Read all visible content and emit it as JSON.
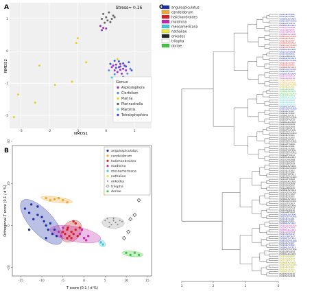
{
  "panel_labels": {
    "a": "A",
    "b": "B",
    "c": "C"
  },
  "colors": {
    "angulospiculatus": "#1f2fa8",
    "candelabrum": "#f0a830",
    "halichondroides": "#d42020",
    "madinina": "#c02ab0",
    "mesoamericana": "#47c8d8",
    "nathaliae": "#e8e840",
    "onkodes": "#222222",
    "trilopha": "#ffffff",
    "doriae": "#40c840",
    "genus_Asploslophora": "#9b30c8",
    "genus_Clorfolium": "#6a8ae0",
    "genus_Plarina": "#e6d020",
    "genus_Plarinastrella": "#666666",
    "genus_Plarolitis": "#4ec8d6",
    "genus_Tetralophophora": "#3b5ad8"
  },
  "chart_data": [
    {
      "type": "scatter",
      "panel": "A",
      "title": "",
      "annotation": "Stress= 0.16",
      "xlabel": "NMDS1",
      "ylabel": "NMDS2",
      "xlim": [
        -3.4,
        1.6
      ],
      "ylim": [
        -2.4,
        1.5
      ],
      "xticks": [
        "-3",
        "-2",
        "-1",
        "0",
        "1"
      ],
      "yticks": [
        "1",
        "0",
        "-1",
        "-2"
      ],
      "legend_title": "Genus",
      "legend_position": "bottom-right",
      "series": [
        {
          "name": "Asploslophora",
          "points": [
            [
              0.25,
              -0.45
            ],
            [
              0.35,
              -0.42
            ],
            [
              0.45,
              -0.5
            ],
            [
              0.5,
              -0.4
            ],
            [
              0.6,
              -0.55
            ],
            [
              0.3,
              -0.6
            ],
            [
              0.4,
              -0.65
            ],
            [
              0.55,
              -0.7
            ],
            [
              0.2,
              -0.5
            ],
            [
              0.65,
              -0.45
            ],
            [
              0.7,
              -0.6
            ],
            [
              0.5,
              -0.58
            ],
            [
              -0.2,
              0.78
            ],
            [
              -0.1,
              0.72
            ],
            [
              -0.15,
              0.65
            ],
            [
              0.0,
              0.7
            ]
          ]
        },
        {
          "name": "Clorfolium",
          "points": [
            [
              0.1,
              -0.6
            ],
            [
              0.3,
              -0.72
            ],
            [
              0.6,
              -0.8
            ],
            [
              0.75,
              -0.7
            ],
            [
              0.85,
              -0.55
            ]
          ]
        },
        {
          "name": "Plarina",
          "points": [
            [
              -1.0,
              0.4
            ],
            [
              -1.05,
              0.25
            ],
            [
              -0.7,
              -0.35
            ],
            [
              -1.2,
              -0.95
            ],
            [
              -1.8,
              -1.05
            ],
            [
              -2.5,
              -1.6
            ],
            [
              -3.1,
              -1.35
            ],
            [
              -3.25,
              -2.05
            ],
            [
              -2.35,
              -0.45
            ],
            [
              0.4,
              -0.25
            ]
          ]
        },
        {
          "name": "Plarinastrella",
          "points": [
            [
              -0.1,
              1.15
            ],
            [
              0.0,
              1.05
            ],
            [
              0.1,
              1.2
            ],
            [
              0.2,
              1.0
            ],
            [
              0.05,
              0.95
            ],
            [
              0.25,
              1.1
            ],
            [
              -0.05,
              0.88
            ],
            [
              0.15,
              0.9
            ],
            [
              0.3,
              1.05
            ],
            [
              -0.15,
              1.0
            ]
          ]
        },
        {
          "name": "Plarolitis",
          "points": [
            [
              0.2,
              -0.82
            ],
            [
              0.4,
              -0.9
            ],
            [
              0.55,
              -0.95
            ],
            [
              0.65,
              -0.88
            ]
          ]
        },
        {
          "name": "Tetralophophora",
          "points": [
            [
              0.3,
              -0.3
            ],
            [
              0.45,
              -0.32
            ],
            [
              0.6,
              -0.38
            ],
            [
              0.15,
              -0.4
            ],
            [
              0.7,
              -0.48
            ],
            [
              0.8,
              -0.35
            ],
            [
              0.35,
              -0.52
            ],
            [
              0.5,
              -0.48
            ],
            [
              0.9,
              -0.6
            ]
          ]
        }
      ]
    },
    {
      "type": "scatter",
      "panel": "B",
      "title": "",
      "xlabel": "T score (0.1 / d %)",
      "ylabel": "Orthogonal T score (0.1 / d %)",
      "xlim": [
        -17,
        16
      ],
      "ylim": [
        -24,
        38
      ],
      "xticks": [
        "-15",
        "-10",
        "-5",
        "0",
        "5",
        "10",
        "15"
      ],
      "yticks": [
        "40",
        "20",
        "0",
        "-20"
      ],
      "legend_position": "top-right",
      "series": [
        {
          "name": "angulospiculatus",
          "points": [
            [
              -14,
              8
            ],
            [
              -13,
              6
            ],
            [
              -12,
              3
            ],
            [
              -11,
              5
            ],
            [
              -10,
              4
            ],
            [
              -9.5,
              2
            ],
            [
              -9,
              0
            ],
            [
              -8.5,
              -2
            ],
            [
              -8,
              1
            ],
            [
              -7.5,
              -4
            ],
            [
              -7,
              -2
            ],
            [
              -6.5,
              -5
            ],
            [
              -11,
              9
            ],
            [
              -12.5,
              10
            ],
            [
              -9,
              -6
            ],
            [
              -13,
              -2
            ]
          ]
        },
        {
          "name": "candelabrum",
          "points": [
            [
              -9,
              13
            ],
            [
              -8,
              12
            ],
            [
              -7,
              12.5
            ],
            [
              -6,
              13
            ],
            [
              -5,
              12
            ],
            [
              -4,
              11
            ]
          ]
        },
        {
          "name": "halichondroides",
          "points": [
            [
              -5,
              -3
            ],
            [
              -4.5,
              -4
            ],
            [
              -4,
              -2
            ],
            [
              -3.5,
              -5
            ],
            [
              -3,
              -3
            ],
            [
              -2.5,
              -4
            ],
            [
              -2,
              -2
            ],
            [
              -1.5,
              -5
            ],
            [
              -3,
              -6
            ],
            [
              -4,
              -6
            ],
            [
              -2,
              1
            ],
            [
              -1,
              -1
            ],
            [
              -2.5,
              2
            ],
            [
              -3.8,
              -1
            ]
          ]
        },
        {
          "name": "madinina",
          "points": [
            [
              -6,
              -3
            ],
            [
              -5.5,
              -5
            ],
            [
              -5,
              -1
            ],
            [
              -1,
              -4
            ],
            [
              0,
              -6
            ],
            [
              -0.5,
              -2
            ],
            [
              1,
              -5
            ],
            [
              0.5,
              -7
            ]
          ]
        },
        {
          "name": "mesoamericana",
          "points": [
            [
              4,
              -8
            ],
            [
              4.5,
              -9
            ]
          ]
        },
        {
          "name": "nathaliae",
          "points": [
            [
              5,
              18
            ],
            [
              5.5,
              21
            ],
            [
              6,
              24
            ],
            [
              6.5,
              26
            ],
            [
              7,
              28
            ],
            [
              6,
              22
            ],
            [
              5.8,
              17
            ]
          ]
        },
        {
          "name": "onkodes",
          "points": [
            [
              5,
              2
            ],
            [
              6,
              1
            ],
            [
              7,
              2
            ],
            [
              8,
              0
            ],
            [
              6,
              -1
            ],
            [
              7,
              3
            ],
            [
              5.5,
              3
            ],
            [
              8.5,
              2
            ],
            [
              6.5,
              0
            ],
            [
              7.5,
              1
            ],
            [
              9,
              1.5
            ]
          ]
        },
        {
          "name": "trilopha",
          "points": [
            [
              11,
              3
            ],
            [
              12,
              5
            ],
            [
              13,
              12
            ],
            [
              10.5,
              -3
            ],
            [
              9.5,
              -6
            ]
          ]
        },
        {
          "name": "doriae",
          "points": [
            [
              10,
              -13
            ],
            [
              11,
              -14
            ],
            [
              12,
              -13
            ],
            [
              13,
              -14
            ]
          ]
        }
      ]
    },
    {
      "type": "dendrogram",
      "panel": "C",
      "title": "",
      "xticks": [
        "3",
        "2",
        "1",
        "0"
      ],
      "leaf_count": 120
    }
  ],
  "legend_c": [
    {
      "key": "angulospiculatus",
      "label": "angulospiculatus"
    },
    {
      "key": "candelabrum",
      "label": "candelabrum"
    },
    {
      "key": "halichondroides",
      "label": "halichondroides"
    },
    {
      "key": "madinina",
      "label": "madinina"
    },
    {
      "key": "mesoamericana",
      "label": "mesoamericana"
    },
    {
      "key": "nathaliae",
      "label": "nathaliae"
    },
    {
      "key": "onkodes",
      "label": "onkodes"
    },
    {
      "key": "trilopha",
      "label": "trilopha"
    },
    {
      "key": "doriae",
      "label": "doriae"
    }
  ],
  "legend_b": [
    {
      "key": "angulospiculatus",
      "label": "angulospiculatus",
      "shape": "circle"
    },
    {
      "key": "candelabrum",
      "label": "candelabrum",
      "shape": "circle"
    },
    {
      "key": "halichondroides",
      "label": "halichondroides",
      "shape": "circle"
    },
    {
      "key": "madinina",
      "label": "madinina",
      "shape": "circle"
    },
    {
      "key": "mesoamericana",
      "label": "mesoamericana",
      "shape": "circle"
    },
    {
      "key": "nathaliae",
      "label": "nathaliae",
      "shape": "circle"
    },
    {
      "key": "onkodes",
      "label": "onkodes",
      "shape": "star"
    },
    {
      "key": "trilopha",
      "label": "trilopha",
      "shape": "diamond"
    },
    {
      "key": "doriae",
      "label": "doriae",
      "shape": "circle"
    }
  ],
  "dendrogram_leaves": [
    "1502G6L3CR06",
    "1502G6L3CR06",
    "1505B6L5VCR09",
    "1505GQG7VCR12",
    "1502GOTYCR11",
    "1505E6L4GCR10",
    "1502GOVXCR08",
    "1502G0VXCR06",
    "1502GGBTCR09",
    "1505B6L5VCR08",
    "1505GQG7VCR07",
    "1502G6L3CR13",
    "1502G6L3CR04",
    "1505B6L5VCR12",
    "1505GQG7VCR03",
    "1502GOTYCR02",
    "1505E6L4GCR02",
    "1502GOVXCR09",
    "1502G0VXCR01",
    "1502GGBTCR05",
    "1505B6L5VCR14",
    "1505GQG7VCR01",
    "1502G6L3CR09",
    "1502G6L3CR15",
    "1505B6L5VCR03",
    "1505GQG7VCR11",
    "1502GOTYCR07",
    "1505E6L4GCR06",
    "1502GOVXCR13",
    "1502G0VXCR10",
    "1502GGBTCR02",
    "1505B6L5VCR06",
    "1505GQG7VCR05",
    "1502G6L3CR01",
    "1502G6L3CR11",
    "1505B6L5VCR10",
    "1505GQG7VCR14",
    "1502GOTYCR04",
    "1505E6L4GCR12",
    "1502GOVXCR03",
    "1502G0VXCR12",
    "1502GGBTCR07",
    "1505B6L5VCR01",
    "1505GQG7VCR09",
    "1502G6L3CR07",
    "1502G6L3CR02",
    "1505B6L5VCR13",
    "1505GQG7VCR04",
    "1502GOTYCR10",
    "1505E6L4GCR03",
    "1502GOVXCR05",
    "1502G0VXCR08",
    "1502GGBTCR11",
    "1505B6L5VCR04",
    "1505GQG7VCR10",
    "1502G6L3CR14",
    "1502G6L3CR03",
    "1505B6L5VCR11",
    "1505GQG7VCR02",
    "1502GOTYCR06",
    "1502G6L3CR06",
    "1502G6L3CR06",
    "1505B6L5VCR09",
    "1505GQG7VCR12",
    "1502GOTYCR11",
    "1505E6L4GCR10",
    "1502GOVXCR08",
    "1502G0VXCR06",
    "1502GGBTCR09",
    "1505B6L5VCR08",
    "1505GQG7VCR07",
    "1502G6L3CR13",
    "1502G6L3CR04",
    "1505B6L5VCR12",
    "1505GQG7VCR03",
    "1502GOTYCR02",
    "1505E6L4GCR02",
    "1502GOVXCR09",
    "1502G0VXCR01",
    "1502GGBTCR05",
    "1505B6L5VCR14",
    "1505GQG7VCR01",
    "1502G6L3CR09",
    "1502G6L3CR15",
    "1505B6L5VCR03",
    "1505GQG7VCR11",
    "1502GOTYCR07",
    "1505E6L4GCR06",
    "1502GOVXCR13",
    "1502G0VXCR10",
    "1502GGBTCR02",
    "1505B6L5VCR06",
    "1505GQG7VCR05",
    "1502G6L3CR01",
    "1502G6L3CR11",
    "1505B6L5VCR10",
    "1505GQG7VCR14",
    "1502GOTYCR04",
    "1505E6L4GCR12",
    "1502GOVXCR03",
    "1502G0VXCR12",
    "1502GGBTCR07",
    "1505B6L5VCR01",
    "1505GQG7VCR09",
    "1502G6L3CR07",
    "1502G6L3CR02",
    "1505B6L5VCR13",
    "1505GQG7VCR04",
    "1502GOTYCR10",
    "1505E6L4GCR03",
    "1502GOVXCR05",
    "1502G0VXCR08",
    "1502GGBTCR11",
    "1505B6L5VCR04",
    "1505GQG7VCR10",
    "1502G6L3CR14",
    "1502G6L3CR03",
    "1505B6L5VCR11",
    "1502MG3LCR10",
    "1502MG3LCR06"
  ],
  "dendrogram_leaf_species": [
    "angulospiculatus",
    "angulospiculatus",
    "angulospiculatus",
    "angulospiculatus",
    "angulospiculatus",
    "angulospiculatus",
    "madinina",
    "madinina",
    "madinina",
    "madinina",
    "halichondroides",
    "halichondroides",
    "halichondroides",
    "halichondroides",
    "halichondroides",
    "halichondroides",
    "angulospiculatus",
    "angulospiculatus",
    "angulospiculatus",
    "angulospiculatus",
    "angulospiculatus",
    "angulospiculatus",
    "halichondroides",
    "halichondroides",
    "halichondroides",
    "angulospiculatus",
    "angulospiculatus",
    "angulospiculatus",
    "madinina",
    "madinina",
    "candelabrum",
    "candelabrum",
    "nathaliae",
    "nathaliae",
    "doriae",
    "doriae",
    "doriae",
    "doriae",
    "mesoamericana",
    "mesoamericana",
    "mesoamericana",
    "mesoamericana",
    "angulospiculatus",
    "angulospiculatus",
    "angulospiculatus",
    "onkodes",
    "onkodes",
    "onkodes",
    "onkodes",
    "onkodes",
    "onkodes",
    "onkodes",
    "onkodes",
    "onkodes",
    "onkodes",
    "onkodes",
    "onkodes",
    "onkodes",
    "onkodes",
    "onkodes",
    "onkodes",
    "onkodes",
    "onkodes",
    "onkodes",
    "onkodes",
    "onkodes",
    "onkodes",
    "onkodes",
    "onkodes",
    "onkodes",
    "onkodes",
    "onkodes",
    "onkodes",
    "onkodes",
    "onkodes",
    "onkodes",
    "onkodes",
    "onkodes",
    "onkodes",
    "onkodes",
    "onkodes",
    "onkodes",
    "onkodes",
    "onkodes",
    "onkodes",
    "onkodes",
    "onkodes",
    "onkodes",
    "onkodes",
    "onkodes",
    "onkodes",
    "angulospiculatus",
    "angulospiculatus",
    "angulospiculatus",
    "angulospiculatus",
    "angulospiculatus",
    "madinina",
    "madinina",
    "madinina",
    "madinina",
    "angulospiculatus",
    "angulospiculatus",
    "angulospiculatus",
    "angulospiculatus",
    "angulospiculatus",
    "angulospiculatus",
    "angulospiculatus",
    "onkodes",
    "onkodes",
    "onkodes",
    "nathaliae",
    "nathaliae",
    "nathaliae",
    "nathaliae",
    "nathaliae",
    "nathaliae",
    "nathaliae",
    "nathaliae",
    "onkodes",
    "onkodes"
  ]
}
